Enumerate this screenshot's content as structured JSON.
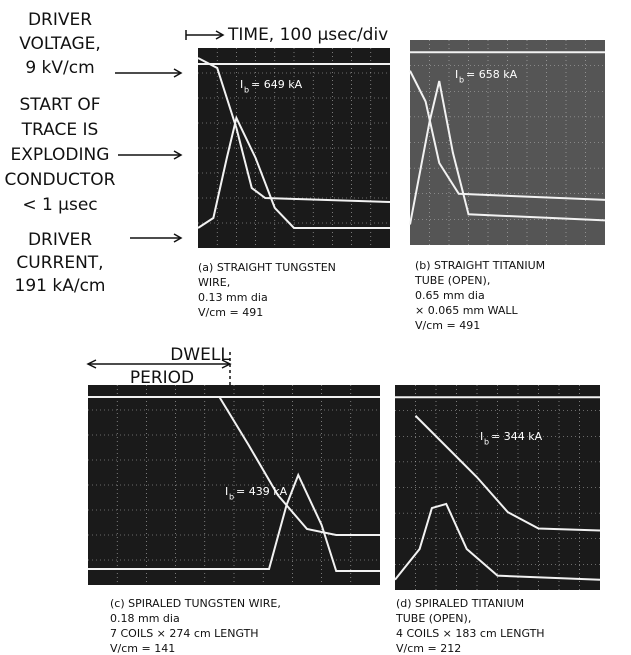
{
  "left_labels": {
    "driver_voltage": [
      "DRIVER",
      "VOLTAGE,",
      "9 kV/cm"
    ],
    "start_of_trace": [
      "START OF",
      "TRACE IS",
      "EXPLODING",
      "CONDUCTOR",
      "< 1 μsec"
    ],
    "driver_current": [
      "DRIVER",
      "CURRENT,",
      "191 kA/cm"
    ]
  },
  "time_label": "TIME, 100 μsec/div",
  "dwell_label": [
    "DWELL",
    "PERIOD"
  ],
  "panels": [
    {
      "current": {
        "symbol": "I",
        "subscript": "b",
        "value": "= 649 kA"
      },
      "caption": [
        "(a) STRAIGHT TUNGSTEN",
        "WIRE,",
        "0.13 mm dia",
        "V/cm = 491"
      ]
    },
    {
      "current": {
        "symbol": "I",
        "subscript": "b",
        "value": "= 658 kA"
      },
      "caption": [
        "(b) STRAIGHT TITANIUM",
        "TUBE (OPEN),",
        "0.65 mm dia",
        "× 0.065 mm WALL",
        "V/cm = 491"
      ]
    },
    {
      "current": {
        "symbol": "I",
        "subscript": "b",
        "value": "= 439 kA"
      },
      "caption": [
        "(c) SPIRALED TUNGSTEN WIRE,",
        "0.18 mm dia",
        "7 COILS × 274 cm LENGTH",
        "V/cm = 141"
      ]
    },
    {
      "current": {
        "symbol": "I",
        "subscript": "b",
        "value": "= 344 kA"
      },
      "caption": [
        "(d) SPIRALED TITANIUM",
        "TUBE (OPEN),",
        "4 COILS × 183 cm LENGTH",
        "V/cm = 212"
      ]
    }
  ]
}
